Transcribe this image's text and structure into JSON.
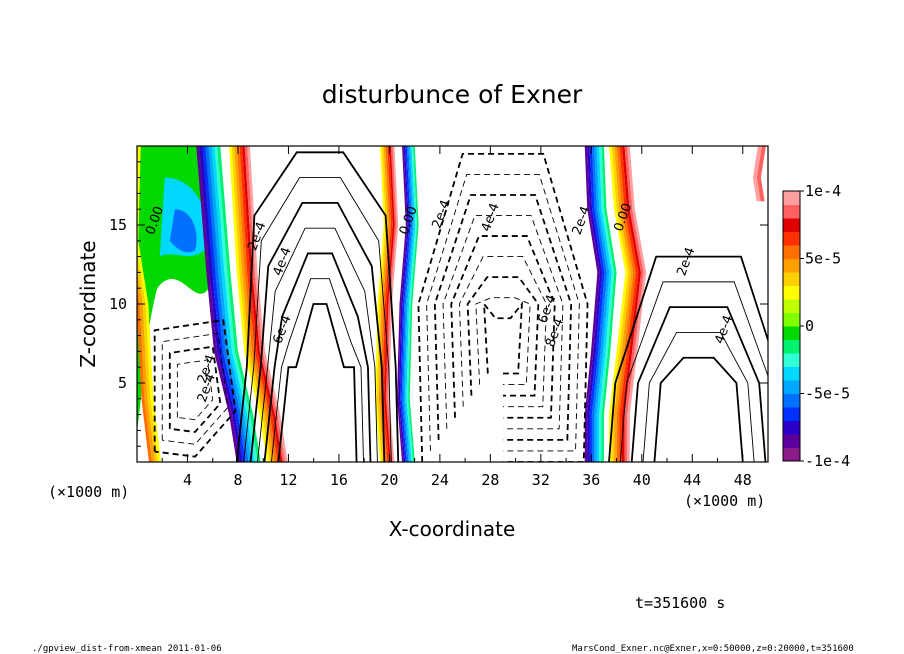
{
  "chart_data": {
    "type": "contour",
    "title": "disturbunce of Exner",
    "xlabel": "X-coordinate",
    "ylabel": "Z-coordinate",
    "x_unit": "(×1000 m)",
    "y_unit": "(×1000 m)",
    "xlim": [
      0,
      50
    ],
    "ylim": [
      0,
      20
    ],
    "x_ticks": [
      4,
      8,
      12,
      16,
      20,
      24,
      28,
      32,
      36,
      40,
      44,
      48
    ],
    "y_ticks": [
      5,
      10,
      15
    ],
    "colorbar": {
      "ticks": [
        {
          "value": 0.0001,
          "label": "1e-4"
        },
        {
          "value": 5e-05,
          "label": "5e-5"
        },
        {
          "value": 0,
          "label": "0"
        },
        {
          "value": -5e-05,
          "label": "-5e-5"
        },
        {
          "value": -0.0001,
          "label": "-1e-4"
        }
      ],
      "colors": [
        "#8b1a8b",
        "#5b009b",
        "#2a00c8",
        "#0030ff",
        "#0070ff",
        "#00a8ff",
        "#00d8ff",
        "#30ffd8",
        "#00f070",
        "#00d800",
        "#80ff00",
        "#c0ff00",
        "#ffff00",
        "#ffd000",
        "#ffa000",
        "#ff7000",
        "#ff3000",
        "#e00000",
        "#ff6060",
        "#ffa0a0"
      ]
    },
    "contour_labels": [
      {
        "text": "0.00",
        "x": 1.7,
        "z": 15.2
      },
      {
        "text": "2e-4",
        "x": 5.8,
        "z": 5.8
      },
      {
        "text": "2e-4",
        "x": 9.8,
        "z": 14.2
      },
      {
        "text": "4e-4",
        "x": 11.8,
        "z": 12.6
      },
      {
        "text": "6e-4",
        "x": 11.8,
        "z": 8.3
      },
      {
        "text": "0.00",
        "x": 21.8,
        "z": 15.2
      },
      {
        "text": "2e-4",
        "x": 24.4,
        "z": 15.6
      },
      {
        "text": "4e-4",
        "x": 28.3,
        "z": 15.4
      },
      {
        "text": "6e-4",
        "x": 32.8,
        "z": 9.6
      },
      {
        "text": "8e-4",
        "x": 33.4,
        "z": 8.1
      },
      {
        "text": "2e-4",
        "x": 35.5,
        "z": 15.2
      },
      {
        "text": "0.00",
        "x": 38.8,
        "z": 15.4
      },
      {
        "text": "2e-4",
        "x": 43.8,
        "z": 12.6
      },
      {
        "text": "4e-4",
        "x": 46.8,
        "z": 8.3
      },
      {
        "text": "2e-4",
        "x": 5.8,
        "z": 4.6
      }
    ]
  },
  "footer": {
    "time_label": "t=351600 s",
    "script_name": "./gpview_dist-from-xmean  2011-01-06",
    "source_info": "MarsCond_Exner.nc@Exner,x=0:50000,z=0:20000,t=351600"
  }
}
